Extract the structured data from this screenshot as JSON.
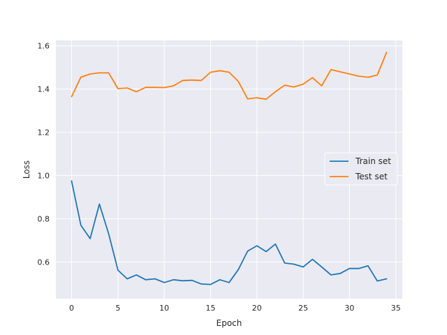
{
  "chart_data": {
    "type": "line",
    "title": "",
    "xlabel": "Epoch",
    "ylabel": "Loss",
    "xlim": [
      -1.7,
      35.7
    ],
    "ylim": [
      0.43,
      1.625
    ],
    "xticks": [
      0,
      5,
      10,
      15,
      20,
      25,
      30,
      35
    ],
    "yticks": [
      0.6,
      0.8,
      1.0,
      1.2,
      1.4,
      1.6
    ],
    "ytick_labels": [
      "0.6",
      "0.8",
      "1.0",
      "1.2",
      "1.4",
      "1.6"
    ],
    "grid": true,
    "legend_position": "center-right",
    "background": "#eaeaf2",
    "x": [
      0,
      1,
      2,
      3,
      4,
      5,
      6,
      7,
      8,
      9,
      10,
      11,
      12,
      13,
      14,
      15,
      16,
      17,
      18,
      19,
      20,
      21,
      22,
      23,
      24,
      25,
      26,
      27,
      28,
      29,
      30,
      31,
      32,
      33,
      34
    ],
    "series": [
      {
        "name": "Train set",
        "color": "#1f77b4",
        "values": [
          0.975,
          0.77,
          0.708,
          0.868,
          0.73,
          0.562,
          0.522,
          0.54,
          0.518,
          0.522,
          0.505,
          0.518,
          0.513,
          0.515,
          0.498,
          0.496,
          0.518,
          0.505,
          0.565,
          0.65,
          0.675,
          0.648,
          0.683,
          0.595,
          0.59,
          0.577,
          0.612,
          0.577,
          0.54,
          0.547,
          0.57,
          0.57,
          0.582,
          0.512,
          0.522
        ]
      },
      {
        "name": "Test set",
        "color": "#ff7f0e",
        "values": [
          1.365,
          1.455,
          1.47,
          1.475,
          1.475,
          1.402,
          1.405,
          1.388,
          1.408,
          1.408,
          1.407,
          1.415,
          1.44,
          1.442,
          1.44,
          1.478,
          1.485,
          1.478,
          1.435,
          1.355,
          1.36,
          1.353,
          1.388,
          1.418,
          1.41,
          1.423,
          1.453,
          1.415,
          1.49,
          1.48,
          1.47,
          1.46,
          1.455,
          1.465,
          1.57
        ]
      }
    ]
  }
}
